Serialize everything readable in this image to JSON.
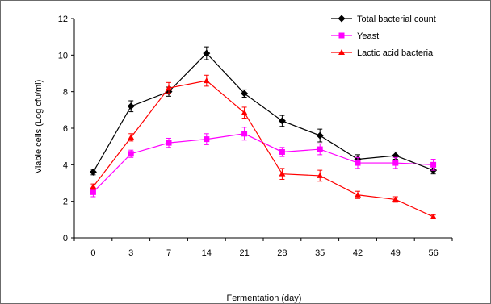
{
  "chart_data": {
    "type": "line",
    "title": "",
    "xlabel": "Fermentation (day)",
    "ylabel": "Viable cells (Log cfu/ml)",
    "categories": [
      "0",
      "3",
      "7",
      "14",
      "21",
      "28",
      "35",
      "42",
      "49",
      "56"
    ],
    "ylim": [
      0,
      12
    ],
    "yticks": [
      0,
      2,
      4,
      6,
      8,
      10,
      12
    ],
    "grid": false,
    "legend_position": "top-right",
    "series": [
      {
        "name": "Total bacterial count",
        "color": "#000000",
        "marker": "diamond",
        "values": [
          3.6,
          7.2,
          8.0,
          10.1,
          7.9,
          6.4,
          5.6,
          4.3,
          4.5,
          3.7
        ],
        "errors": [
          0.15,
          0.3,
          0.25,
          0.35,
          0.2,
          0.3,
          0.35,
          0.25,
          0.2,
          0.2
        ]
      },
      {
        "name": "Yeast",
        "color": "#ff00ff",
        "marker": "square",
        "values": [
          2.5,
          4.6,
          5.2,
          5.4,
          5.7,
          4.7,
          4.85,
          4.1,
          4.1,
          4.0
        ],
        "errors": [
          0.25,
          0.2,
          0.25,
          0.3,
          0.35,
          0.25,
          0.3,
          0.3,
          0.3,
          0.3
        ]
      },
      {
        "name": "Lactic acid bacteria",
        "color": "#ff0000",
        "marker": "triangle",
        "values": [
          2.8,
          5.5,
          8.2,
          8.6,
          6.85,
          3.5,
          3.4,
          2.35,
          2.1,
          1.15
        ],
        "errors": [
          0.15,
          0.2,
          0.3,
          0.3,
          0.3,
          0.3,
          0.3,
          0.2,
          0.15,
          0.1
        ]
      }
    ]
  }
}
